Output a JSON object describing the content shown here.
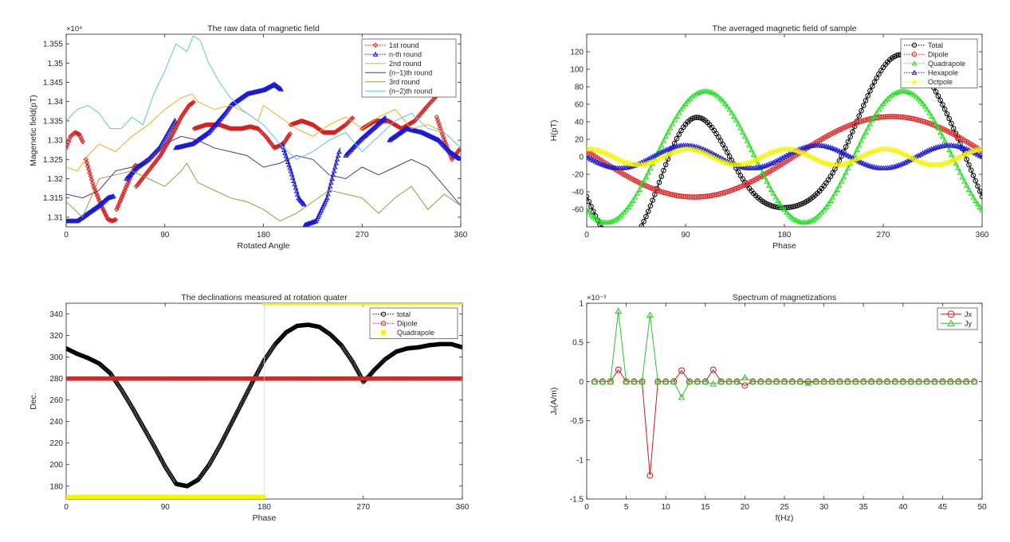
{
  "chart_data": [
    {
      "type": "line",
      "title": "The raw data of magnetic field",
      "xlabel": "Rotated Angle",
      "ylabel": "Magenetic field(pT)",
      "exponent_label": "×10⁴",
      "xlim": [
        0,
        360
      ],
      "ylim": [
        1.3075,
        1.3575
      ],
      "xticks": [
        0,
        90,
        180,
        270,
        360
      ],
      "yticks": [
        1.31,
        1.315,
        1.32,
        1.325,
        1.33,
        1.335,
        1.34,
        1.345,
        1.35,
        1.355
      ],
      "series": [
        {
          "name": "1st round",
          "color": "#d62020",
          "marker": "diamond",
          "segments": [
            {
              "x": [
                0,
                4,
                8,
                12,
                16
              ],
              "y": [
                1.328,
                1.331,
                1.332,
                1.3315,
                1.329
              ]
            },
            {
              "x": [
                18,
                25,
                32,
                38,
                42,
                46
              ],
              "y": [
                1.325,
                1.318,
                1.313,
                1.3095,
                1.309,
                1.3095
              ]
            },
            {
              "x": [
                46,
                52,
                58,
                64
              ],
              "y": [
                1.312,
                1.316,
                1.32,
                1.324
              ]
            },
            {
              "x": [
                64,
                75,
                86,
                96,
                105,
                112,
                117
              ],
              "y": [
                1.318,
                1.322,
                1.326,
                1.331,
                1.336,
                1.339,
                1.34
              ]
            },
            {
              "x": [
                117,
                128,
                140,
                150,
                160,
                168
              ],
              "y": [
                1.333,
                1.334,
                1.334,
                1.333,
                1.333,
                1.3335
              ]
            },
            {
              "x": [
                168,
                175,
                182,
                190,
                198,
                205
              ],
              "y": [
                1.3335,
                1.333,
                1.331,
                1.328,
                1.329,
                1.332
              ]
            },
            {
              "x": [
                205,
                215,
                225,
                235,
                245,
                255,
                262
              ],
              "y": [
                1.334,
                1.335,
                1.334,
                1.332,
                1.332,
                1.334,
                1.336
              ]
            },
            {
              "x": [
                270,
                282,
                294,
                306,
                318,
                330,
                338
              ],
              "y": [
                1.333,
                1.335,
                1.335,
                1.333,
                1.335,
                1.339,
                1.3415
              ]
            },
            {
              "x": [
                338,
                345,
                352,
                360
              ],
              "y": [
                1.336,
                1.33,
                1.325,
                1.328
              ]
            }
          ]
        },
        {
          "name": "n-th round",
          "color": "#1a1ad6",
          "marker": "triangle",
          "segments": [
            {
              "x": [
                0,
                10,
                20,
                30,
                38,
                44
              ],
              "y": [
                1.309,
                1.309,
                1.311,
                1.313,
                1.315,
                1.3155
              ]
            },
            {
              "x": [
                55,
                65,
                75,
                85,
                95,
                100
              ],
              "y": [
                1.32,
                1.323,
                1.325,
                1.328,
                1.333,
                1.3355
              ]
            },
            {
              "x": [
                100,
                115,
                130,
                145,
                150
              ],
              "y": [
                1.328,
                1.329,
                1.332,
                1.337,
                1.339
              ]
            },
            {
              "x": [
                150,
                165,
                180,
                190,
                197
              ],
              "y": [
                1.339,
                1.342,
                1.343,
                1.3445,
                1.343
              ]
            },
            {
              "x": [
                197,
                205,
                212,
                218
              ],
              "y": [
                1.329,
                1.322,
                1.315,
                1.313
              ]
            },
            {
              "x": [
                218,
                228,
                238,
                250
              ],
              "y": [
                1.308,
                1.309,
                1.315,
                1.328
              ]
            },
            {
              "x": [
                255,
                268,
                280,
                292
              ],
              "y": [
                1.326,
                1.33,
                1.333,
                1.336
              ]
            },
            {
              "x": [
                295,
                310,
                325,
                340,
                350,
                360
              ],
              "y": [
                1.33,
                1.333,
                1.332,
                1.33,
                1.327,
                1.325
              ]
            }
          ]
        },
        {
          "name": "2nd round",
          "color": "#e8b020",
          "marker": "none",
          "segments": [
            {
              "x": [
                0,
                10,
                20,
                30,
                45,
                60,
                75,
                90,
                105,
                115,
                120,
                135,
                150,
                165,
                175,
                180,
                195,
                210,
                225,
                240,
                255,
                270,
                285,
                300,
                315,
                330,
                345,
                360
              ],
              "y": [
                1.323,
                1.322,
                1.326,
                1.329,
                1.327,
                1.331,
                1.334,
                1.338,
                1.341,
                1.342,
                1.34,
                1.338,
                1.339,
                1.337,
                1.335,
                1.339,
                1.336,
                1.333,
                1.331,
                1.334,
                1.336,
                1.333,
                1.336,
                1.338,
                1.333,
                1.334,
                1.332,
                1.328
              ]
            }
          ]
        },
        {
          "name": "(n−1)th round",
          "color": "#6a2d7a",
          "marker": "none",
          "segments": [
            {
              "x": [
                0,
                15,
                30,
                45,
                60,
                75,
                90,
                105,
                120,
                135,
                150,
                165,
                180,
                195,
                210,
                225,
                240,
                255,
                270,
                285,
                300,
                315,
                330,
                345,
                360
              ],
              "y": [
                1.316,
                1.315,
                1.317,
                1.322,
                1.323,
                1.325,
                1.329,
                1.331,
                1.33,
                1.328,
                1.327,
                1.326,
                1.323,
                1.324,
                1.326,
                1.325,
                1.321,
                1.32,
                1.323,
                1.321,
                1.323,
                1.325,
                1.323,
                1.318,
                1.313
              ]
            }
          ]
        },
        {
          "name": "3rd round",
          "color": "#9a9a3c",
          "marker": "none",
          "segments": [
            {
              "x": [
                0,
                15,
                30,
                45,
                60,
                75,
                90,
                105,
                110,
                120,
                135,
                150,
                165,
                180,
                195,
                210,
                225,
                240,
                255,
                270,
                285,
                300,
                315,
                330,
                345,
                360
              ],
              "y": [
                1.314,
                1.31,
                1.32,
                1.321,
                1.322,
                1.32,
                1.318,
                1.322,
                1.324,
                1.319,
                1.317,
                1.315,
                1.314,
                1.312,
                1.309,
                1.311,
                1.314,
                1.317,
                1.316,
                1.315,
                1.311,
                1.315,
                1.318,
                1.312,
                1.316,
                1.313
              ]
            }
          ]
        },
        {
          "name": "(n−2)th round",
          "color": "#5bc8dc",
          "marker": "none",
          "segments": [
            {
              "x": [
                0,
                10,
                20,
                30,
                40,
                50,
                60,
                70,
                80,
                90,
                100,
                110,
                116,
                122,
                130,
                140,
                150,
                160,
                170,
                180,
                195,
                210,
                225,
                240,
                255,
                270,
                285,
                300,
                315,
                330,
                345,
                360
              ],
              "y": [
                1.335,
                1.338,
                1.339,
                1.337,
                1.333,
                1.333,
                1.336,
                1.334,
                1.342,
                1.348,
                1.355,
                1.353,
                1.357,
                1.356,
                1.35,
                1.345,
                1.341,
                1.338,
                1.336,
                1.334,
                1.329,
                1.325,
                1.327,
                1.33,
                1.332,
                1.327,
                1.331,
                1.335,
                1.337,
                1.333,
                1.332,
                1.328
              ]
            }
          ]
        }
      ]
    },
    {
      "type": "line",
      "title": "The averaged magnetic field of sample",
      "xlabel": "Phase",
      "ylabel": "H(pT)",
      "xlim": [
        0,
        360
      ],
      "ylim": [
        -80,
        140
      ],
      "xticks": [
        0,
        90,
        180,
        270,
        360
      ],
      "yticks": [
        -60,
        -40,
        -20,
        0,
        20,
        40,
        60,
        80,
        100,
        120
      ],
      "series": [
        {
          "name": "Total",
          "color": "#000000",
          "marker": "circle",
          "formula": "total"
        },
        {
          "name": "Dipole",
          "color": "#e02020",
          "marker": "circle",
          "formula": "dipole"
        },
        {
          "name": "Quadrapole",
          "color": "#20e020",
          "marker": "triangle",
          "formula": "quadrapole"
        },
        {
          "name": "Hexapole",
          "color": "#1a1ad6",
          "marker": "triangle",
          "formula": "hexapole"
        },
        {
          "name": "Octpole",
          "color": "#f5f500",
          "marker": "triangle",
          "formula": "octpole"
        }
      ]
    },
    {
      "type": "line",
      "title": "The declinations measured at rotation quater",
      "xlabel": "Phase",
      "ylabel": "Dec.",
      "xlim": [
        0,
        360
      ],
      "ylim": [
        168,
        350
      ],
      "xticks": [
        0,
        90,
        180,
        270,
        360
      ],
      "yticks": [
        180,
        200,
        220,
        240,
        260,
        280,
        300,
        320,
        340
      ],
      "series": [
        {
          "name": "total",
          "color": "#000000",
          "marker": "circle",
          "points": {
            "x": [
              0,
              10,
              20,
              30,
              40,
              50,
              60,
              70,
              80,
              90,
              100,
              110,
              120,
              130,
              140,
              150,
              160,
              170,
              180,
              190,
              200,
              210,
              220,
              230,
              240,
              250,
              260,
              266,
              270,
              275,
              280,
              290,
              300,
              310,
              320,
              330,
              340,
              350,
              360
            ],
            "y": [
              308,
              303,
              299,
              294,
              285,
              270,
              253,
              235,
              217,
              198,
              182,
              180,
              186,
              200,
              218,
              238,
              258,
              278,
              297,
              312,
              323,
              329,
              330,
              328,
              321,
              311,
              296,
              285,
              277,
              282,
              288,
              298,
              305,
              308,
              309,
              311,
              312,
              312,
              309
            ]
          }
        },
        {
          "name": "Dipole",
          "color": "#e02020",
          "marker": "circle",
          "points": {
            "x": [
              0,
              360
            ],
            "y": [
              280,
              280
            ]
          }
        },
        {
          "name": "Quadrapole",
          "color": "#f5f500",
          "marker": "square",
          "points": {
            "x": [
              0,
              180,
              180,
              360
            ],
            "y": [
              170,
              170,
              350,
              350
            ]
          }
        }
      ]
    },
    {
      "type": "line",
      "title": "Spectrum of magnetizations",
      "xlabel": "f(Hz)",
      "ylabel": "Jₑ(A/m)",
      "exponent_label": "×10⁻³",
      "xlim": [
        0,
        50
      ],
      "ylim": [
        -1.5,
        1
      ],
      "xticks": [
        0,
        5,
        10,
        15,
        20,
        25,
        30,
        35,
        40,
        45,
        50
      ],
      "yticks": [
        -1.5,
        -1,
        -0.5,
        0,
        0.5,
        1
      ],
      "series": [
        {
          "name": "Jx",
          "color": "#c02020",
          "marker": "circle",
          "spikes": {
            "4": 0.15,
            "8": -1.2,
            "12": 0.14,
            "16": 0.15,
            "20": -0.05
          }
        },
        {
          "name": "Jy",
          "color": "#30c030",
          "marker": "triangle",
          "spikes": {
            "4": 0.9,
            "8": 0.85,
            "12": -0.2,
            "16": -0.03,
            "20": 0.05,
            "28": -0.02
          }
        }
      ]
    }
  ]
}
